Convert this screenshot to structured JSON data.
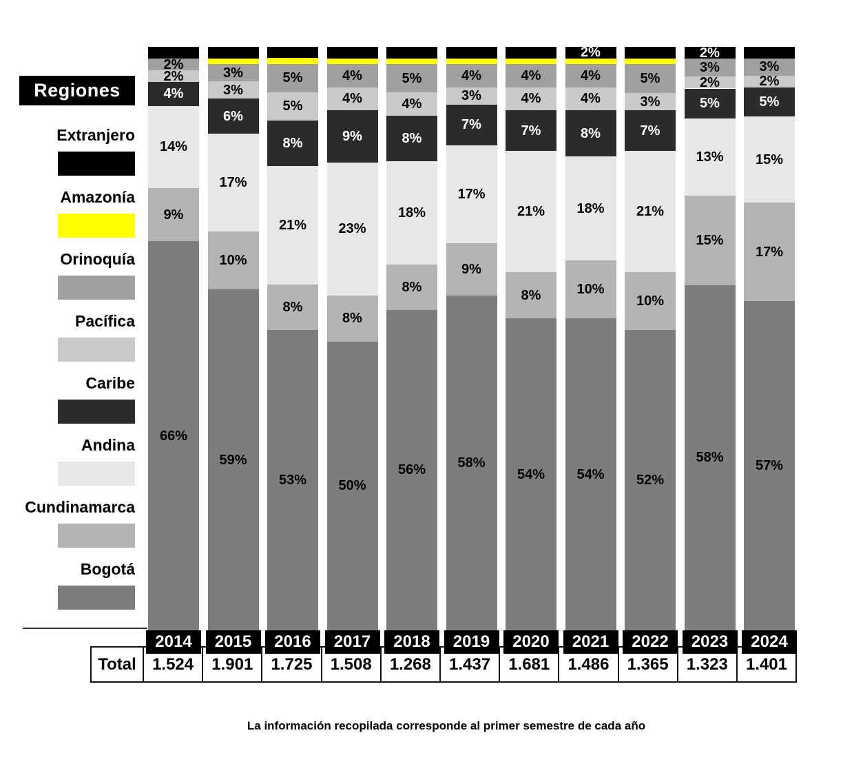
{
  "legend": {
    "header": "Regiones",
    "items": [
      {
        "label": "Extranjero",
        "color": "#000000"
      },
      {
        "label": "Amazonía",
        "color": "#ffff00"
      },
      {
        "label": "Orinoquía",
        "color": "#a0a0a0"
      },
      {
        "label": "Pacífica",
        "color": "#c9c9c9"
      },
      {
        "label": "Caribe",
        "color": "#2b2b2b"
      },
      {
        "label": "Andina",
        "color": "#e7e7e7"
      },
      {
        "label": "Cundinamarca",
        "color": "#b4b4b4"
      },
      {
        "label": "Bogotá",
        "color": "#7d7d7d"
      }
    ]
  },
  "table": {
    "row_label": "Total",
    "totals": [
      "1.524",
      "1.901",
      "1.725",
      "1.508",
      "1.268",
      "1.437",
      "1.681",
      "1.486",
      "1.365",
      "1.323",
      "1.401"
    ]
  },
  "caption": "La información recopilada corresponde al primer semestre de cada año",
  "chart_data": {
    "type": "bar",
    "stacked": true,
    "title": "Regiones",
    "categories": [
      "2014",
      "2015",
      "2016",
      "2017",
      "2018",
      "2019",
      "2020",
      "2021",
      "2022",
      "2023",
      "2024"
    ],
    "totals": [
      1524,
      1901,
      1725,
      1508,
      1268,
      1437,
      1681,
      1486,
      1365,
      1323,
      1401
    ],
    "legend_position": "left",
    "stack_order_top_to_bottom": [
      "Extranjero",
      "Amazonía",
      "Orinoquía",
      "Pacífica",
      "Caribe",
      "Andina",
      "Cundinamarca",
      "Bogotá"
    ],
    "series": [
      {
        "name": "Extranjero",
        "color": "#000000",
        "label_color": "#ffffff",
        "values": [
          2,
          2,
          2,
          2,
          2,
          2,
          2,
          2,
          2,
          2,
          2
        ],
        "labels": [
          "",
          "",
          "",
          "",
          "",
          "",
          "",
          "2%",
          "",
          "2%",
          ""
        ]
      },
      {
        "name": "Amazonía",
        "color": "#ffff00",
        "label_color": "#000000",
        "values": [
          0,
          1,
          1,
          1,
          1,
          1,
          1,
          1,
          1,
          0,
          0
        ],
        "labels": [
          "",
          "",
          "",
          "",
          "",
          "",
          "",
          "",
          "",
          "",
          ""
        ]
      },
      {
        "name": "Orinoquía",
        "color": "#a0a0a0",
        "label_color": "#000000",
        "values": [
          2,
          3,
          5,
          4,
          5,
          4,
          4,
          4,
          5,
          3,
          3
        ],
        "labels": [
          "2%",
          "3%",
          "5%",
          "4%",
          "5%",
          "4%",
          "4%",
          "4%",
          "5%",
          "3%",
          "3%"
        ]
      },
      {
        "name": "Pacífica",
        "color": "#c9c9c9",
        "label_color": "#000000",
        "values": [
          2,
          3,
          5,
          4,
          4,
          3,
          4,
          4,
          3,
          2,
          2
        ],
        "labels": [
          "2%",
          "3%",
          "5%",
          "4%",
          "4%",
          "3%",
          "4%",
          "4%",
          "3%",
          "2%",
          "2%"
        ]
      },
      {
        "name": "Caribe",
        "color": "#2b2b2b",
        "label_color": "#ffffff",
        "values": [
          4,
          6,
          8,
          9,
          8,
          7,
          7,
          8,
          7,
          5,
          5
        ],
        "labels": [
          "4%",
          "6%",
          "8%",
          "9%",
          "8%",
          "7%",
          "7%",
          "8%",
          "7%",
          "5%",
          "5%"
        ]
      },
      {
        "name": "Andina",
        "color": "#e7e7e7",
        "label_color": "#000000",
        "values": [
          14,
          17,
          21,
          23,
          18,
          17,
          21,
          18,
          21,
          13,
          15
        ],
        "labels": [
          "14%",
          "17%",
          "21%",
          "23%",
          "18%",
          "17%",
          "21%",
          "18%",
          "21%",
          "13%",
          "15%"
        ]
      },
      {
        "name": "Cundinamarca",
        "color": "#b4b4b4",
        "label_color": "#000000",
        "values": [
          9,
          10,
          8,
          8,
          8,
          9,
          8,
          10,
          10,
          15,
          17
        ],
        "labels": [
          "9%",
          "10%",
          "8%",
          "8%",
          "8%",
          "9%",
          "8%",
          "10%",
          "10%",
          "15%",
          "17%"
        ]
      },
      {
        "name": "Bogotá",
        "color": "#7d7d7d",
        "label_color": "#000000",
        "values": [
          66,
          59,
          53,
          50,
          56,
          58,
          54,
          54,
          52,
          58,
          57
        ],
        "labels": [
          "66%",
          "59%",
          "53%",
          "50%",
          "56%",
          "58%",
          "54%",
          "54%",
          "52%",
          "58%",
          "57%"
        ]
      }
    ]
  }
}
